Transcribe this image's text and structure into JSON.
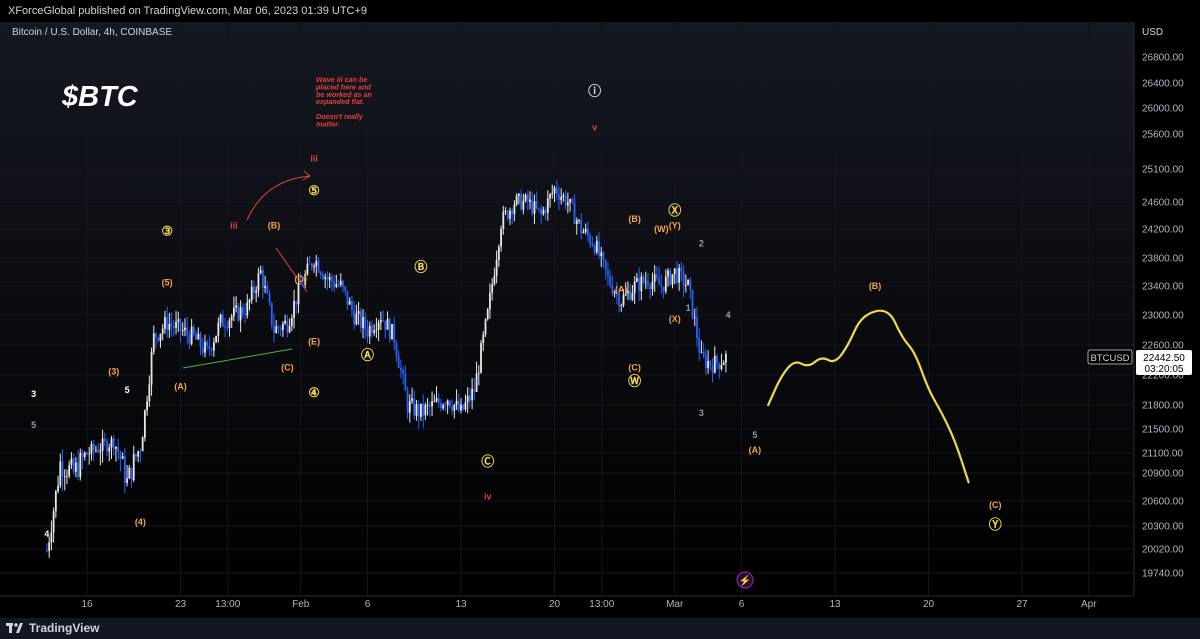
{
  "header": {
    "publisher": "XForceGlobal published on TradingView.com, Mar 06, 2023 01:39 UTC+9"
  },
  "symbol": {
    "description": "Bitcoin / U.S. Dollar, 4h, COINBASE"
  },
  "price_scale": {
    "unit": "USD"
  },
  "last_price": {
    "symbol": "BTCUSD",
    "price": "22442.50",
    "countdown": "03:20:05"
  },
  "footer": {
    "brand": "TradingView"
  },
  "chart_data": {
    "type": "candlestick",
    "title": "$BTC",
    "y_ticks": [
      26800,
      26400,
      26000,
      25600,
      25100,
      24600,
      24200,
      23800,
      23400,
      23000,
      22600,
      22200,
      21800,
      21500,
      21100,
      20900,
      20600,
      20300,
      20020,
      19740
    ],
    "x_tick_labels": [
      {
        "label": "16",
        "date": "2023-01-16"
      },
      {
        "label": "23",
        "date": "2023-01-23"
      },
      {
        "label": "13:00",
        "date": "2023-01-26T13:00"
      },
      {
        "label": "Feb",
        "date": "2023-02-01"
      },
      {
        "label": "6",
        "date": "2023-02-06"
      },
      {
        "label": "13",
        "date": "2023-02-13"
      },
      {
        "label": "20",
        "date": "2023-02-20"
      },
      {
        "label": "13:00",
        "date": "2023-02-23T13:00"
      },
      {
        "label": "Mar",
        "date": "2023-03-01"
      },
      {
        "label": "6",
        "date": "2023-03-06"
      },
      {
        "label": "13",
        "date": "2023-03-13"
      },
      {
        "label": "20",
        "date": "2023-03-20"
      },
      {
        "label": "27",
        "date": "2023-03-27"
      },
      {
        "label": "Apr",
        "date": "2023-04-01"
      }
    ],
    "price_path": [
      [
        "2023-01-13",
        20000
      ],
      [
        "2023-01-14",
        21000
      ],
      [
        "2023-01-15",
        20900
      ],
      [
        "2023-01-16",
        21100
      ],
      [
        "2023-01-17",
        21200
      ],
      [
        "2023-01-18",
        21300
      ],
      [
        "2023-01-19",
        20800
      ],
      [
        "2023-01-20",
        21200
      ],
      [
        "2023-01-21",
        22700
      ],
      [
        "2023-01-22",
        22900
      ],
      [
        "2023-01-23",
        22800
      ],
      [
        "2023-01-24",
        22700
      ],
      [
        "2023-01-25",
        22500
      ],
      [
        "2023-01-26",
        22900
      ],
      [
        "2023-01-27",
        23000
      ],
      [
        "2023-01-28",
        23100
      ],
      [
        "2023-01-29",
        23600
      ],
      [
        "2023-01-30",
        22800
      ],
      [
        "2023-01-31",
        22900
      ],
      [
        "2023-02-01",
        23400
      ],
      [
        "2023-02-02",
        23800
      ],
      [
        "2023-02-03",
        23500
      ],
      [
        "2023-02-04",
        23400
      ],
      [
        "2023-02-05",
        23000
      ],
      [
        "2023-02-06",
        22800
      ],
      [
        "2023-02-07",
        23000
      ],
      [
        "2023-02-08",
        22700
      ],
      [
        "2023-02-09",
        21800
      ],
      [
        "2023-02-10",
        21700
      ],
      [
        "2023-02-11",
        21800
      ],
      [
        "2023-02-12",
        21900
      ],
      [
        "2023-02-13",
        21700
      ],
      [
        "2023-02-14",
        22000
      ],
      [
        "2023-02-15",
        23000
      ],
      [
        "2023-02-16",
        24300
      ],
      [
        "2023-02-17",
        24600
      ],
      [
        "2023-02-18",
        24600
      ],
      [
        "2023-02-19",
        24400
      ],
      [
        "2023-02-20",
        24800
      ],
      [
        "2023-02-21",
        24600
      ],
      [
        "2023-02-22",
        24200
      ],
      [
        "2023-02-23",
        24000
      ],
      [
        "2023-02-24",
        23500
      ],
      [
        "2023-02-25",
        23200
      ],
      [
        "2023-02-26",
        23400
      ],
      [
        "2023-02-27",
        23500
      ],
      [
        "2023-02-28",
        23400
      ],
      [
        "2023-03-01",
        23600
      ],
      [
        "2023-03-02",
        23400
      ],
      [
        "2023-03-03",
        22400
      ],
      [
        "2023-03-04",
        22350
      ],
      [
        "2023-03-05",
        22450
      ]
    ],
    "projection_path": [
      [
        "2023-03-08",
        21800
      ],
      [
        "2023-03-09",
        22200
      ],
      [
        "2023-03-10",
        22400
      ],
      [
        "2023-03-11",
        22300
      ],
      [
        "2023-03-12",
        22450
      ],
      [
        "2023-03-13",
        22350
      ],
      [
        "2023-03-14",
        22600
      ],
      [
        "2023-03-15",
        23000
      ],
      [
        "2023-03-17",
        23100
      ],
      [
        "2023-03-18",
        22700
      ],
      [
        "2023-03-19",
        22500
      ],
      [
        "2023-03-20",
        22000
      ],
      [
        "2023-03-21",
        21700
      ],
      [
        "2023-03-22",
        21300
      ],
      [
        "2023-03-23",
        20800
      ]
    ],
    "wave_labels": [
      {
        "text": "3",
        "date": "2023-01-12",
        "price": 21950,
        "color": "#ffffff"
      },
      {
        "text": "5",
        "date": "2023-01-12",
        "price": 21550,
        "color": "#9598a1"
      },
      {
        "text": "4",
        "date": "2023-01-13",
        "price": 20200,
        "color": "#ffffff"
      },
      {
        "text": "5",
        "date": "2023-01-19",
        "price": 22000,
        "color": "#ffffff"
      },
      {
        "text": "(3)",
        "date": "2023-01-18",
        "price": 22250,
        "color": "#f7a145"
      },
      {
        "text": "(4)",
        "date": "2023-01-20",
        "price": 20350,
        "color": "#f7a145"
      },
      {
        "text": "(5)",
        "date": "2023-01-22",
        "price": 23450,
        "color": "#f7a145"
      },
      {
        "text": "③",
        "date": "2023-01-22",
        "price": 24150,
        "color": "#f2d64b"
      },
      {
        "text": "(A)",
        "date": "2023-01-23",
        "price": 22050,
        "color": "#f7a145"
      },
      {
        "text": "iii",
        "date": "2023-01-27",
        "price": 24250,
        "color": "#e0403a"
      },
      {
        "text": "(B)",
        "date": "2023-01-30",
        "price": 24250,
        "color": "#f7a145"
      },
      {
        "text": "(C)",
        "date": "2023-01-31",
        "price": 22300,
        "color": "#f7a145"
      },
      {
        "text": "(D)",
        "date": "2023-02-01",
        "price": 23500,
        "color": "#f7a145"
      },
      {
        "text": "(E)",
        "date": "2023-02-02",
        "price": 22650,
        "color": "#f7a145"
      },
      {
        "text": "⑤",
        "date": "2023-02-02",
        "price": 24750,
        "color": "#f2d64b"
      },
      {
        "text": "iii",
        "date": "2023-02-02",
        "price": 25250,
        "color": "#e0403a"
      },
      {
        "text": "④",
        "date": "2023-02-02",
        "price": 21950,
        "color": "#f2d64b"
      },
      {
        "text": "Ⓐ",
        "date": "2023-02-06",
        "price": 22450,
        "color": "#f2d64b"
      },
      {
        "text": "Ⓑ",
        "date": "2023-02-10",
        "price": 23650,
        "color": "#f2d64b"
      },
      {
        "text": "Ⓒ",
        "date": "2023-02-15",
        "price": 21000,
        "color": "#f2d64b"
      },
      {
        "text": "iv",
        "date": "2023-02-15",
        "price": 20650,
        "color": "#e0403a"
      },
      {
        "text": "v",
        "date": "2023-02-23",
        "price": 25700,
        "color": "#e0403a"
      },
      {
        "text": "ⓘ",
        "date": "2023-02-23",
        "price": 26250,
        "color": "#d1d4dc"
      },
      {
        "text": "(B)",
        "date": "2023-02-26",
        "price": 24350,
        "color": "#f7a145"
      },
      {
        "text": "(A)",
        "date": "2023-02-25",
        "price": 23350,
        "color": "#f7a145"
      },
      {
        "text": "(C)",
        "date": "2023-02-26",
        "price": 22300,
        "color": "#f7a145"
      },
      {
        "text": "Ⓦ",
        "date": "2023-02-26",
        "price": 22100,
        "color": "#f2d64b"
      },
      {
        "text": "(W)",
        "date": "2023-02-28",
        "price": 24200,
        "color": "#f7a145"
      },
      {
        "text": "Ⓧ",
        "date": "2023-03-01",
        "price": 24450,
        "color": "#f2d64b"
      },
      {
        "text": "(Y)",
        "date": "2023-03-01",
        "price": 24250,
        "color": "#f7a145"
      },
      {
        "text": "(X)",
        "date": "2023-03-01",
        "price": 22950,
        "color": "#f7a145"
      },
      {
        "text": "2",
        "date": "2023-03-03",
        "price": 24000,
        "color": "#9598a1"
      },
      {
        "text": "1",
        "date": "2023-03-02",
        "price": 23100,
        "color": "#9598a1"
      },
      {
        "text": "3",
        "date": "2023-03-03",
        "price": 21700,
        "color": "#9598a1"
      },
      {
        "text": "4",
        "date": "2023-03-05",
        "price": 23000,
        "color": "#9598a1"
      },
      {
        "text": "5",
        "date": "2023-03-07",
        "price": 21400,
        "color": "#9598a1"
      },
      {
        "text": "(A)",
        "date": "2023-03-07",
        "price": 21150,
        "color": "#f7a145"
      },
      {
        "text": "(B)",
        "date": "2023-03-16",
        "price": 23400,
        "color": "#f7a145"
      },
      {
        "text": "(C)",
        "date": "2023-03-25",
        "price": 20550,
        "color": "#f7a145"
      },
      {
        "text": "Ⓨ",
        "date": "2023-03-25",
        "price": 20300,
        "color": "#f2d64b"
      }
    ],
    "note": {
      "lines": [
        "Wave iii can be",
        "placed here and",
        "be worked as an",
        "expanded flat.",
        "",
        "Doesn't really",
        "matter."
      ],
      "color": "#e0403a"
    }
  }
}
